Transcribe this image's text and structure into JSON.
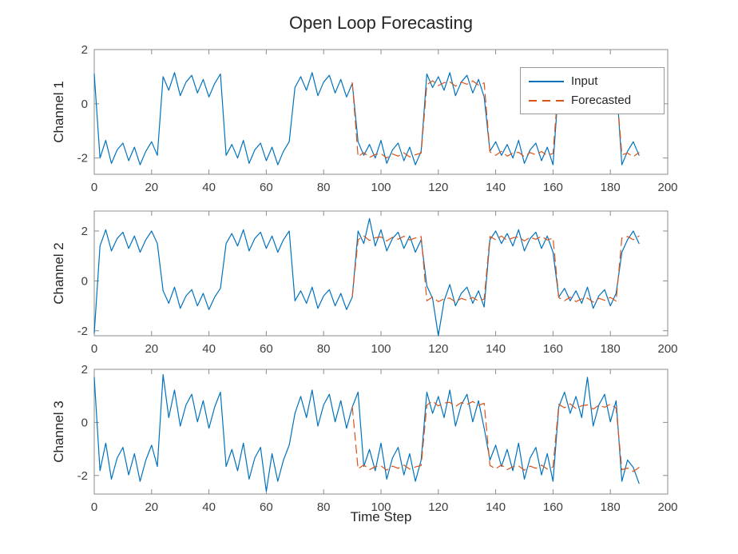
{
  "figure": {
    "title": "Open Loop Forecasting",
    "xlabel": "Time Step",
    "background": "#ffffff"
  },
  "legend": {
    "entries": [
      {
        "label": "Input",
        "color": "#0072BD",
        "style": "solid"
      },
      {
        "label": "Forecasted",
        "color": "#D95319",
        "style": "dashed"
      }
    ],
    "position": "northeast"
  },
  "axis": {
    "xlim": [
      0,
      200
    ],
    "xticks": [
      0,
      20,
      40,
      60,
      80,
      100,
      120,
      140,
      160,
      180,
      200
    ],
    "yticks": [
      -2,
      0,
      2
    ],
    "box_color": "#8c8c8c",
    "tick_text_color": "#3f3f3f",
    "grid": false
  },
  "chart_data": [
    {
      "type": "line",
      "ylabel": "Channel 1",
      "ylim": [
        -2.6,
        2
      ],
      "series": [
        {
          "name": "Input",
          "color": "#0072BD",
          "style": "solid",
          "x0": 0,
          "dx": 2,
          "y": [
            1.1,
            -2,
            -1.35,
            -2.2,
            -1.7,
            -1.45,
            -2.1,
            -1.6,
            -2.25,
            -1.75,
            -1.4,
            -1.9,
            1,
            0.5,
            1.15,
            0.3,
            0.8,
            1.05,
            0.4,
            0.9,
            0.25,
            0.75,
            1.1,
            -1.9,
            -1.5,
            -2,
            -1.35,
            -2.2,
            -1.7,
            -1.45,
            -2.1,
            -1.6,
            -2.25,
            -1.75,
            -1.4,
            0.6,
            1,
            0.5,
            1.15,
            0.3,
            0.8,
            1.05,
            0.4,
            0.9,
            0.25,
            0.75,
            -1.4,
            -1.9,
            -1.5,
            -2,
            -1.35,
            -2.2,
            -1.7,
            -1.45,
            -2.1,
            -1.6,
            -2.25,
            -1.75,
            1.1,
            0.6,
            1,
            0.5,
            1.15,
            0.3,
            0.8,
            1.05,
            0.4,
            0.9,
            0.25,
            -1.75,
            -1.4,
            -1.9,
            -1.5,
            -2,
            -1.35,
            -2.2,
            -1.7,
            -1.45,
            -2.1,
            -1.6,
            -2.25,
            0.75,
            1.1,
            0.6,
            1,
            0.5,
            1.15,
            0.3,
            0.8,
            1.05,
            0.4,
            0.9,
            -2.25,
            -1.75,
            -1.4,
            -1.9
          ]
        },
        {
          "name": "Forecasted",
          "color": "#D95319",
          "style": "dashed",
          "x0": 90,
          "dx": 2,
          "y": [
            0.78,
            -1.95,
            -1.8,
            -1.98,
            -1.87,
            -1.84,
            -2,
            -1.85,
            -1.93,
            -1.81,
            -1.96,
            -1.88,
            -1.82,
            0.7,
            0.85,
            0.67,
            0.78,
            0.81,
            0.65,
            0.8,
            0.72,
            0.84,
            0.69,
            0.77,
            -1.77,
            -1.9,
            -1.75,
            -1.93,
            -1.82,
            -1.79,
            -1.95,
            -1.8,
            -1.88,
            -1.76,
            -1.91,
            -1.83,
            0.88,
            0.75,
            0.9,
            0.72,
            0.83,
            0.86,
            0.7,
            0.85,
            0.77,
            0.89,
            0.74,
            -1.88,
            -1.82,
            -1.95,
            -1.8
          ]
        }
      ]
    },
    {
      "type": "line",
      "ylabel": "Channel 2",
      "ylim": [
        -2.2,
        2.8
      ],
      "series": [
        {
          "name": "Input",
          "color": "#0072BD",
          "style": "solid",
          "x0": 0,
          "dx": 2,
          "y": [
            -2.1,
            1.4,
            2.05,
            1.2,
            1.7,
            1.95,
            1.3,
            1.8,
            1.15,
            1.65,
            2,
            1.5,
            -0.4,
            -0.9,
            -0.25,
            -1.1,
            -0.6,
            -0.35,
            -1,
            -0.5,
            -1.15,
            -0.65,
            -0.3,
            1.5,
            1.9,
            1.4,
            2.05,
            1.2,
            1.7,
            1.95,
            1.3,
            1.8,
            1.15,
            1.65,
            2,
            -0.8,
            -0.4,
            -0.9,
            -0.25,
            -1.1,
            -0.6,
            -0.35,
            -1,
            -0.5,
            -1.15,
            -0.65,
            2,
            1.5,
            2.5,
            1.4,
            2.05,
            1.2,
            1.7,
            1.95,
            1.3,
            1.8,
            1.15,
            1.65,
            -0.2,
            -0.7,
            -2.2,
            -0.8,
            -0.15,
            -1,
            -0.5,
            -0.25,
            -0.9,
            -0.4,
            -1.05,
            1.65,
            2,
            1.5,
            1.9,
            1.4,
            2.05,
            1.2,
            1.7,
            1.95,
            1.3,
            1.8,
            1.15,
            -0.65,
            -0.3,
            -0.8,
            -0.4,
            -0.9,
            -0.25,
            -1.1,
            -0.6,
            -0.35,
            -1,
            -0.5,
            1.15,
            1.65,
            2,
            1.5
          ]
        },
        {
          "name": "Forecasted",
          "color": "#D95319",
          "style": "dashed",
          "x0": 90,
          "dx": 2,
          "y": [
            -0.62,
            1.65,
            1.8,
            1.62,
            1.73,
            1.76,
            1.6,
            1.75,
            1.67,
            1.79,
            1.64,
            1.72,
            1.78,
            -0.8,
            -0.65,
            -0.83,
            -0.72,
            -0.69,
            -0.85,
            -0.7,
            -0.78,
            -0.66,
            -0.81,
            -0.73,
            1.78,
            1.65,
            1.8,
            1.62,
            1.73,
            1.76,
            1.6,
            1.75,
            1.67,
            1.79,
            1.64,
            1.72,
            -0.67,
            -0.8,
            -0.65,
            -0.83,
            -0.72,
            -0.69,
            -0.85,
            -0.7,
            -0.78,
            -0.66,
            -0.81,
            1.72,
            1.78,
            1.65,
            1.8
          ]
        }
      ]
    },
    {
      "type": "line",
      "ylabel": "Channel 3",
      "ylim": [
        -2.7,
        2
      ],
      "series": [
        {
          "name": "Input",
          "color": "#0072BD",
          "style": "solid",
          "x0": 0,
          "dx": 2,
          "y": [
            1.7,
            -1.82,
            -0.78,
            -2.14,
            -1.34,
            -0.94,
            -1.98,
            -1.18,
            -2.22,
            -1.42,
            -0.86,
            -1.66,
            1.8,
            0.18,
            1.22,
            -0.14,
            0.66,
            1.06,
            0.02,
            0.82,
            -0.22,
            0.58,
            1.14,
            -1.66,
            -1.02,
            -1.82,
            -0.78,
            -2.14,
            -1.34,
            -0.94,
            -2.6,
            -1.18,
            -2.22,
            -1.42,
            -0.86,
            0.34,
            0.98,
            0.18,
            1.22,
            -0.14,
            0.66,
            1.06,
            0.02,
            0.82,
            -0.22,
            0.58,
            1.14,
            -1.66,
            -1.02,
            -1.82,
            -0.78,
            -2.14,
            -1.34,
            -0.94,
            -1.98,
            -1.18,
            -2.22,
            -1.42,
            1.14,
            0.34,
            0.98,
            0.18,
            1.22,
            -0.14,
            0.66,
            1.06,
            0.02,
            0.82,
            -0.22,
            -1.42,
            -0.86,
            -1.66,
            -1.02,
            -1.82,
            -0.78,
            -2.14,
            -1.34,
            -0.94,
            -1.98,
            -1.18,
            -2.22,
            0.58,
            1.14,
            0.34,
            0.98,
            0.18,
            1.7,
            -0.14,
            0.66,
            1.06,
            0.02,
            0.82,
            -2.22,
            -1.42,
            -1.7,
            -2.3
          ]
        },
        {
          "name": "Forecasted",
          "color": "#D95319",
          "style": "dashed",
          "x0": 90,
          "dx": 2,
          "y": [
            0.58,
            -1.75,
            -1.6,
            -1.78,
            -1.67,
            -1.64,
            -1.8,
            -1.65,
            -1.73,
            -1.61,
            -1.76,
            -1.68,
            -1.62,
            0.65,
            0.8,
            0.62,
            0.73,
            0.76,
            0.6,
            0.75,
            0.67,
            0.79,
            0.64,
            0.72,
            -1.62,
            -1.75,
            -1.6,
            -1.78,
            -1.67,
            -1.64,
            -1.8,
            -1.65,
            -1.73,
            -1.61,
            -1.76,
            -1.68,
            0.68,
            0.55,
            0.7,
            0.52,
            0.63,
            0.66,
            0.5,
            0.65,
            0.57,
            0.69,
            0.54,
            -1.78,
            -1.72,
            -1.85,
            -1.7
          ]
        }
      ]
    }
  ]
}
